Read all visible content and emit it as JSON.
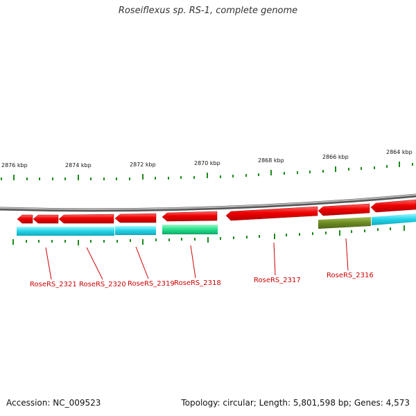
{
  "title": "Roseiflexus sp. RS-1, complete genome",
  "colors": {
    "backbone": "#8c8c8c",
    "cds": "#e00000",
    "cyan_track": "#22d3e6",
    "green_track": "#22e08a",
    "olive_track": "#6b8a22",
    "ticks": "#1a8a1a",
    "label": "#cc0000"
  },
  "scale_labels": [
    "2876 kbp",
    "2874 kbp",
    "2872 kbp",
    "2870 kbp",
    "2868 kbp",
    "2866 kbp",
    "2864 kbp"
  ],
  "genes": [
    "RoseRS_2321",
    "RoseRS_2320",
    "RoseRS_2319",
    "RoseRS_2318",
    "RoseRS_2317",
    "RoseRS_2316"
  ],
  "footer": {
    "accession": "Accession: NC_009523",
    "summary": "Topology: circular; Length: 5,801,598 bp; Genes: 4,573"
  }
}
